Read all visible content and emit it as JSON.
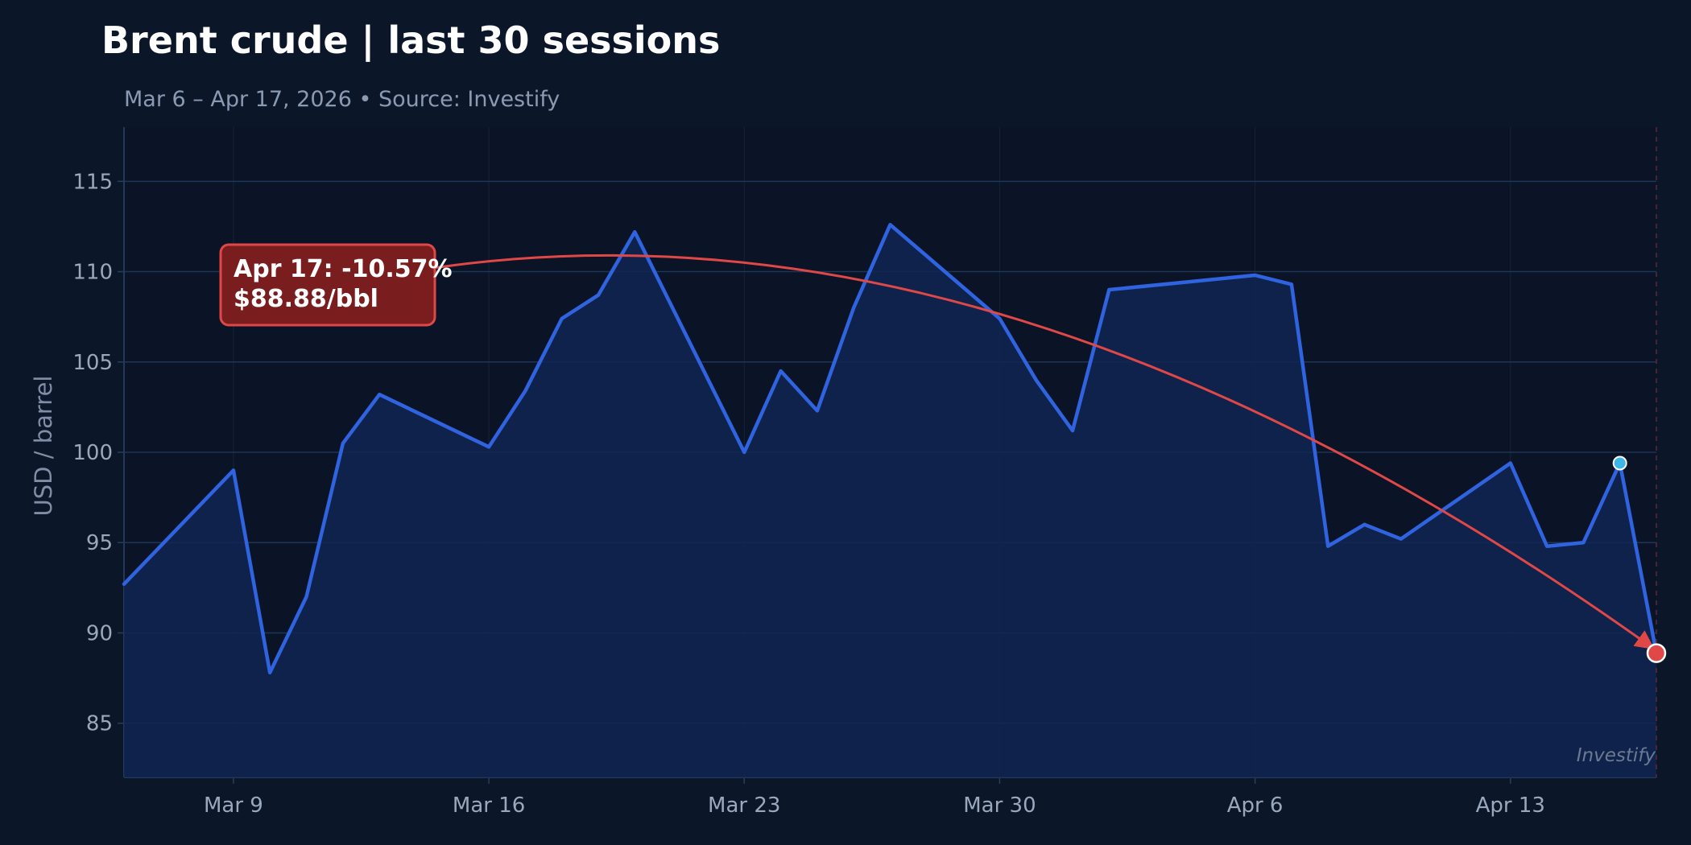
{
  "chart_data": {
    "type": "area",
    "title": "Brent crude | last 30 sessions",
    "subtitle": "Mar 6 – Apr 17, 2026  •  Source: Investify",
    "ylabel": "USD / barrel",
    "xlabel": "",
    "ylim": [
      82,
      118
    ],
    "yticks": [
      85,
      90,
      95,
      100,
      105,
      110,
      115
    ],
    "xticks": [
      {
        "label": "Mar 9",
        "date": "2026-03-09"
      },
      {
        "label": "Mar 16",
        "date": "2026-03-16"
      },
      {
        "label": "Mar 23",
        "date": "2026-03-23"
      },
      {
        "label": "Mar 30",
        "date": "2026-03-30"
      },
      {
        "label": "Apr 6",
        "date": "2026-04-06"
      },
      {
        "label": "Apr 13",
        "date": "2026-04-13"
      }
    ],
    "xlim": [
      "2026-03-06",
      "2026-04-17"
    ],
    "grid": true,
    "series": [
      {
        "dates": [
          "2026-03-06",
          "2026-03-09",
          "2026-03-10",
          "2026-03-11",
          "2026-03-12",
          "2026-03-13",
          "2026-03-16",
          "2026-03-17",
          "2026-03-18",
          "2026-03-19",
          "2026-03-20",
          "2026-03-23",
          "2026-03-24",
          "2026-03-25",
          "2026-03-26",
          "2026-03-27",
          "2026-03-30",
          "2026-03-31",
          "2026-04-01",
          "2026-04-02",
          "2026-04-06",
          "2026-04-07",
          "2026-04-08",
          "2026-04-09",
          "2026-04-10",
          "2026-04-13",
          "2026-04-14",
          "2026-04-15",
          "2026-04-16",
          "2026-04-17"
        ],
        "values": [
          92.7,
          99.0,
          87.8,
          92.0,
          100.5,
          103.2,
          100.3,
          103.4,
          107.4,
          108.7,
          112.2,
          100.0,
          104.5,
          102.3,
          108.0,
          112.6,
          107.4,
          104.0,
          101.2,
          109.0,
          109.8,
          109.3,
          94.8,
          96.0,
          95.2,
          99.4,
          94.8,
          95.0,
          99.4,
          88.88
        ],
        "color": "#2f63e0"
      }
    ],
    "highlight_point": {
      "date": "2026-04-16",
      "value": 99.4,
      "color": "#3fb6e8"
    },
    "annotation": {
      "line1": "Apr 17: -10.57%",
      "line2": "$88.88/bbl",
      "target_date": "2026-04-17",
      "target_value": 88.88,
      "color": "#e04848"
    },
    "watermark": "Investify"
  }
}
